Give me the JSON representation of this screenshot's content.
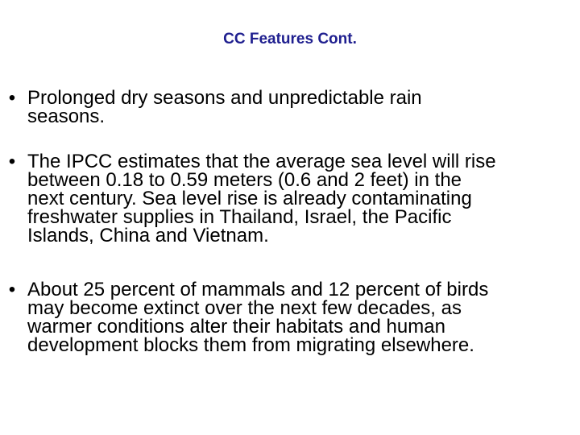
{
  "slide": {
    "title": "CC Features Cont.",
    "bullet_marker": "•",
    "bullets": [
      {
        "lines": [
          "Prolonged dry seasons and unpredictable rain",
          "seasons."
        ]
      },
      {
        "lines": [
          "The IPCC estimates that the average sea level will rise",
          "between 0.18 to 0.59 meters (0.6 and 2 feet) in the",
          "next century. Sea level rise is already contaminating",
          "freshwater supplies in Thailand, Israel, the Pacific",
          "Islands, China and Vietnam."
        ]
      },
      {
        "lines": [
          "About 25 percent of mammals and 12 percent of birds",
          "may become extinct over the next few decades, as",
          "warmer conditions alter their habitats and human",
          "development blocks them from migrating elsewhere."
        ]
      }
    ]
  },
  "colors": {
    "title": "#1f1f8f",
    "text": "#000000",
    "background": "#ffffff"
  }
}
